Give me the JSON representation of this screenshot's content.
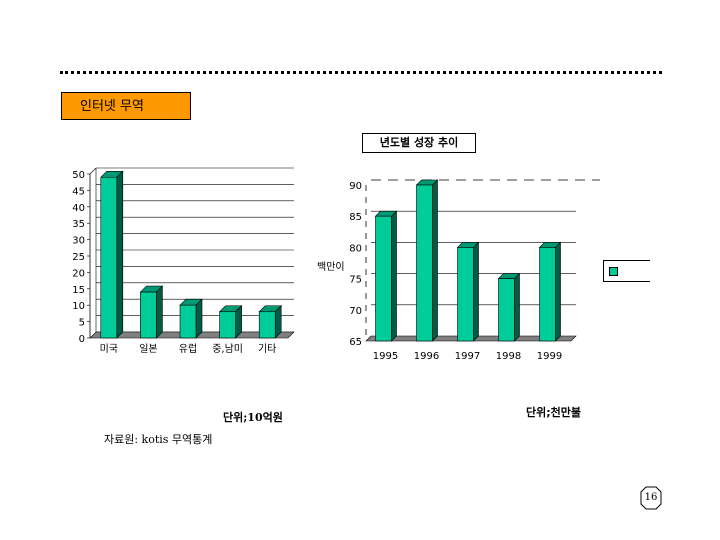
{
  "header": {
    "title": "인터넷 무역"
  },
  "chart_data": [
    {
      "type": "bar",
      "categories": [
        "미국",
        "일본",
        "유럽",
        "중,남미",
        "기타"
      ],
      "values": [
        49,
        14,
        10,
        8,
        8
      ],
      "ylim": [
        0,
        50
      ],
      "yticks": [
        0,
        5,
        10,
        15,
        20,
        25,
        30,
        35,
        40,
        45,
        50
      ],
      "unit": "단위;10억원",
      "grid": true,
      "bar_color": "#00cc99"
    },
    {
      "type": "bar",
      "title": "년도별 성장 추이",
      "categories": [
        "1995",
        "1996",
        "1997",
        "1998",
        "1999"
      ],
      "series": [
        {
          "name": "",
          "values": [
            85,
            90,
            80,
            75,
            80
          ]
        }
      ],
      "ylim": [
        65,
        90
      ],
      "yticks": [
        65,
        70,
        75,
        80,
        85,
        90
      ],
      "ylabel": "백만이",
      "unit": "단위;천만불",
      "grid": true,
      "bar_color": "#00cc99"
    }
  ],
  "footer": {
    "source": "자료원: kotis 무역통계",
    "page": "16"
  }
}
